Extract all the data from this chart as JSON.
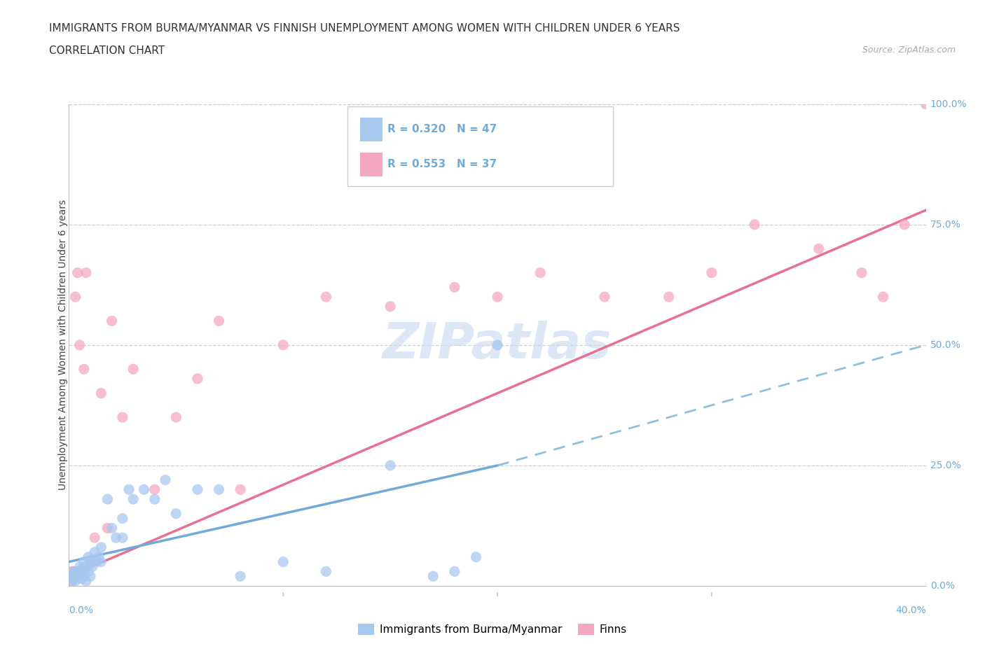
{
  "title1": "IMMIGRANTS FROM BURMA/MYANMAR VS FINNISH UNEMPLOYMENT AMONG WOMEN WITH CHILDREN UNDER 6 YEARS",
  "title2": "CORRELATION CHART",
  "source": "Source: ZipAtlas.com",
  "xlabel_min": "0.0%",
  "xlabel_max": "40.0%",
  "ylabel": "Unemployment Among Women with Children Under 6 years",
  "ylabel_right_labels": [
    "0.0%",
    "25.0%",
    "50.0%",
    "75.0%",
    "100.0%"
  ],
  "ylabel_right_values": [
    0.0,
    25.0,
    50.0,
    75.0,
    100.0
  ],
  "legend_text": [
    "Immigrants from Burma/Myanmar",
    "Finns"
  ],
  "r_blue": 0.32,
  "n_blue": 47,
  "r_pink": 0.553,
  "n_pink": 37,
  "color_blue": "#a8c8f0",
  "color_pink": "#f4a8c0",
  "color_blue_line": "#70aad8",
  "color_pink_line": "#e87090",
  "color_blue_line_dashed": "#90c0e0",
  "watermark_color": "#c8d8f0",
  "grid_color": "#c8d0e0",
  "background_color": "#ffffff",
  "blue_scatter_x": [
    0.1,
    0.15,
    0.2,
    0.2,
    0.3,
    0.3,
    0.4,
    0.4,
    0.5,
    0.5,
    0.6,
    0.6,
    0.7,
    0.7,
    0.8,
    0.8,
    0.9,
    0.9,
    1.0,
    1.0,
    1.1,
    1.2,
    1.3,
    1.4,
    1.5,
    1.5,
    1.8,
    2.0,
    2.2,
    2.5,
    2.8,
    3.0,
    3.5,
    4.0,
    4.5,
    5.0,
    6.0,
    7.0,
    8.0,
    10.0,
    12.0,
    15.0,
    17.0,
    18.0,
    19.0,
    20.0,
    2.5
  ],
  "blue_scatter_y": [
    2.0,
    1.0,
    3.0,
    1.5,
    2.5,
    1.0,
    3.0,
    2.0,
    4.0,
    2.0,
    3.5,
    1.5,
    5.0,
    2.0,
    4.0,
    1.0,
    6.0,
    3.0,
    5.0,
    2.0,
    4.0,
    7.0,
    5.0,
    6.0,
    8.0,
    5.0,
    18.0,
    12.0,
    10.0,
    14.0,
    20.0,
    18.0,
    20.0,
    18.0,
    22.0,
    15.0,
    20.0,
    20.0,
    2.0,
    5.0,
    3.0,
    25.0,
    2.0,
    3.0,
    6.0,
    50.0,
    10.0
  ],
  "pink_scatter_x": [
    0.05,
    0.1,
    0.2,
    0.3,
    0.4,
    0.5,
    0.7,
    0.8,
    1.0,
    1.2,
    1.5,
    1.8,
    2.0,
    2.5,
    3.0,
    4.0,
    5.0,
    6.0,
    7.0,
    8.0,
    10.0,
    12.0,
    15.0,
    18.0,
    20.0,
    22.0,
    25.0,
    28.0,
    30.0,
    32.0,
    35.0,
    37.0,
    38.0,
    39.0,
    40.0,
    0.15,
    0.25
  ],
  "pink_scatter_y": [
    1.0,
    2.0,
    3.0,
    60.0,
    65.0,
    50.0,
    45.0,
    65.0,
    5.0,
    10.0,
    40.0,
    12.0,
    55.0,
    35.0,
    45.0,
    20.0,
    35.0,
    43.0,
    55.0,
    20.0,
    50.0,
    60.0,
    58.0,
    62.0,
    60.0,
    65.0,
    60.0,
    60.0,
    65.0,
    75.0,
    70.0,
    65.0,
    60.0,
    75.0,
    100.0,
    3.0,
    2.0
  ],
  "xmin": 0.0,
  "xmax": 40.0,
  "ymin": 0.0,
  "ymax": 100.0,
  "blue_line_x1": 0.0,
  "blue_line_x2": 20.0,
  "blue_line_y1": 5.0,
  "blue_line_y2": 25.0,
  "blue_dash_x1": 20.0,
  "blue_dash_x2": 40.0,
  "blue_dash_y1": 25.0,
  "blue_dash_y2": 50.0,
  "pink_line_x1": 0.0,
  "pink_line_x2": 40.0,
  "pink_line_y1": 2.0,
  "pink_line_y2": 78.0
}
